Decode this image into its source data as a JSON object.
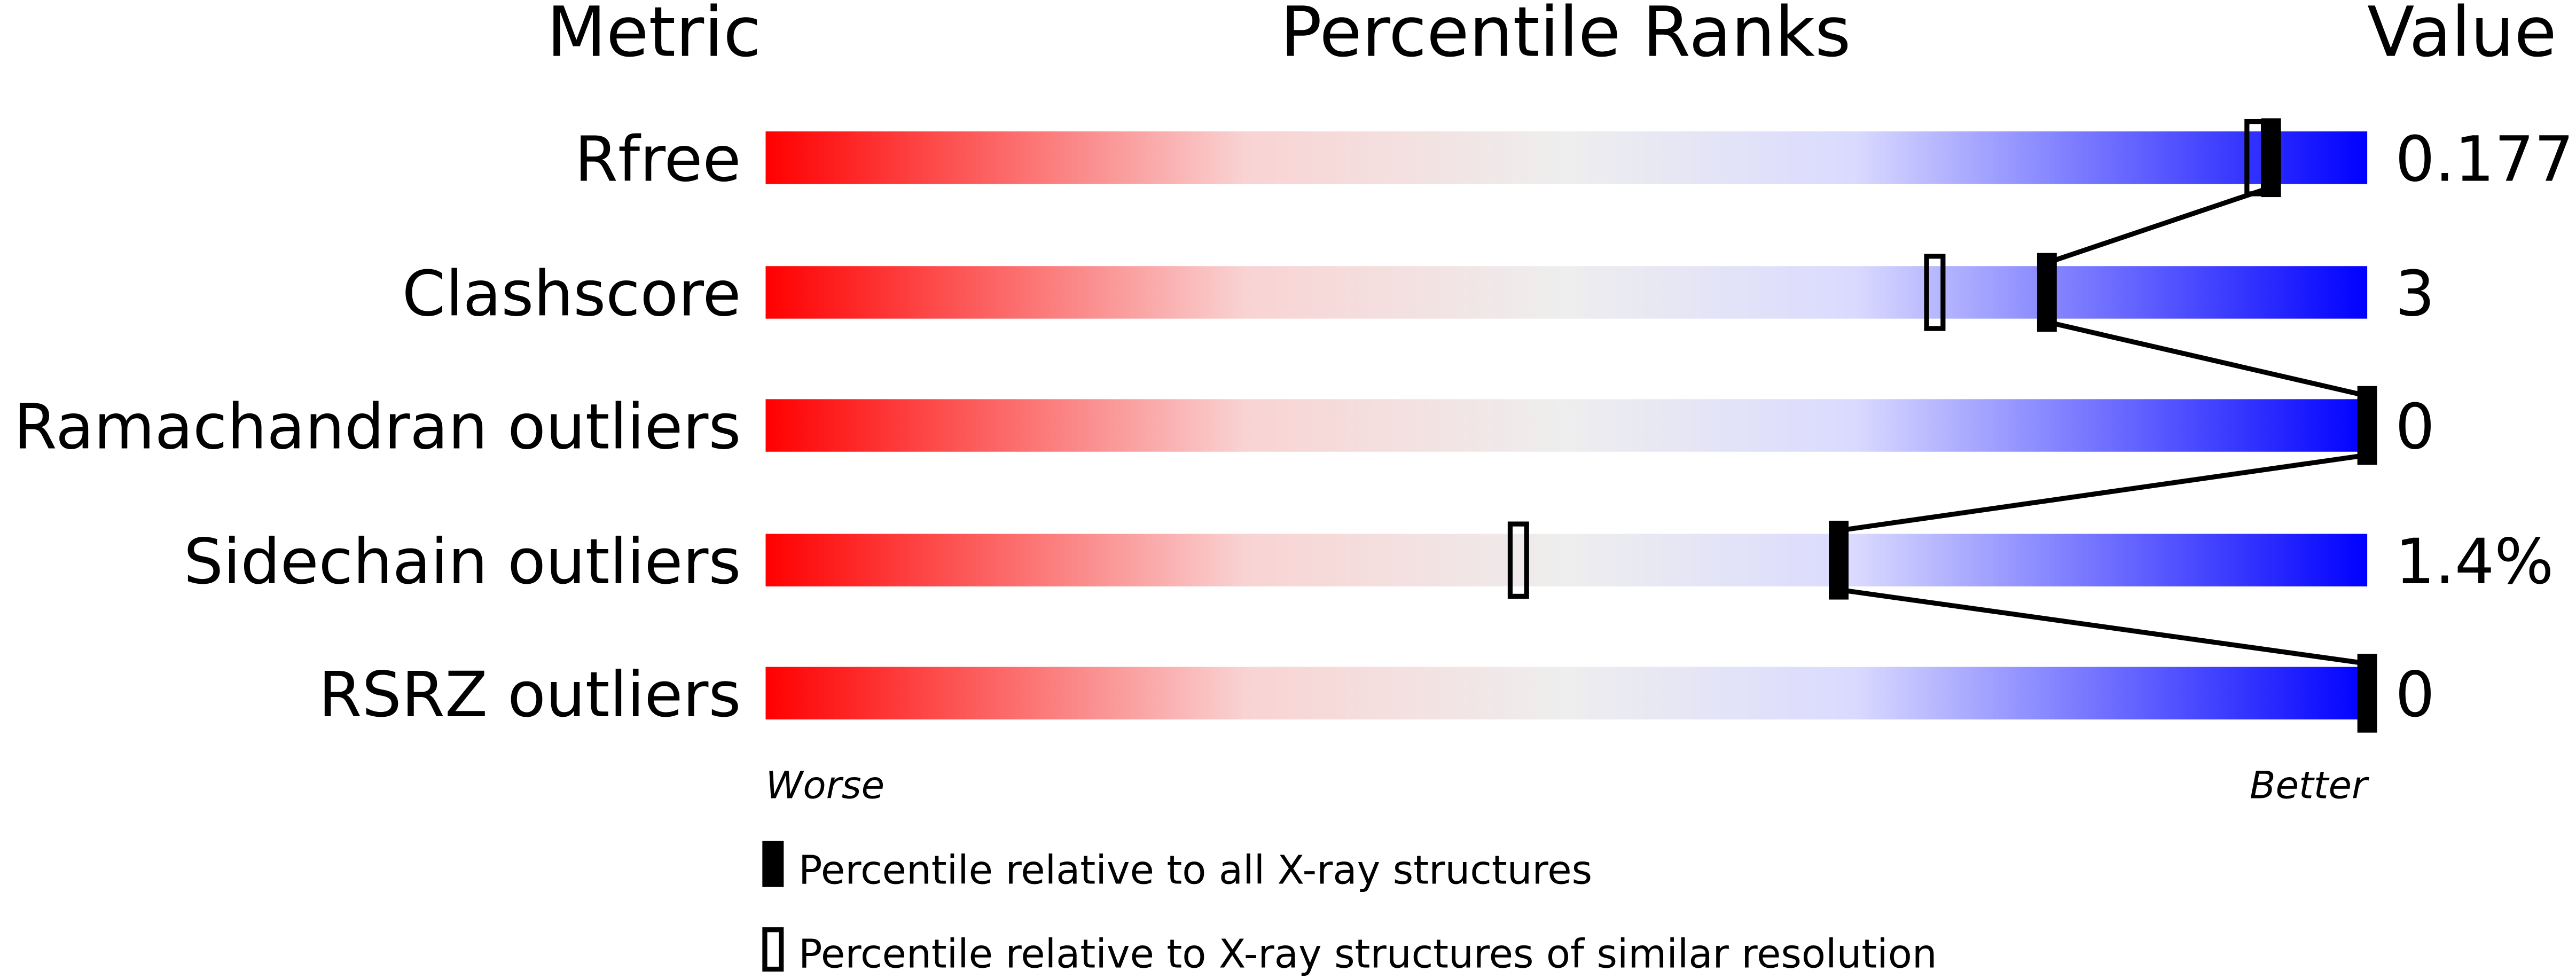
{
  "chart_data": {
    "type": "percentile-slider",
    "headers": {
      "metric": "Metric",
      "ranks": "Percentile Ranks",
      "value": "Value"
    },
    "axis": {
      "left_label": "Worse",
      "right_label": "Better",
      "range": [
        0,
        100
      ]
    },
    "gradient_colors": [
      "#ff0000",
      "#f9d3d3",
      "#eeeeee",
      "#dadaff",
      "#0000ff"
    ],
    "rows": [
      {
        "metric": "Rfree",
        "value": "0.177",
        "percentile_all": 94,
        "percentile_similar": 93
      },
      {
        "metric": "Clashscore",
        "value": "3",
        "percentile_all": 80,
        "percentile_similar": 73
      },
      {
        "metric": "Ramachandran outliers",
        "value": "0",
        "percentile_all": 100,
        "percentile_similar": null
      },
      {
        "metric": "Sidechain outliers",
        "value": "1.4%",
        "percentile_all": 67,
        "percentile_similar": 47
      },
      {
        "metric": "RSRZ outliers",
        "value": "0",
        "percentile_all": 100,
        "percentile_similar": null
      }
    ],
    "legend": [
      {
        "marker": "filled",
        "label": "Percentile relative to all X-ray structures"
      },
      {
        "marker": "open",
        "label": "Percentile relative to X-ray structures of similar resolution"
      }
    ]
  }
}
